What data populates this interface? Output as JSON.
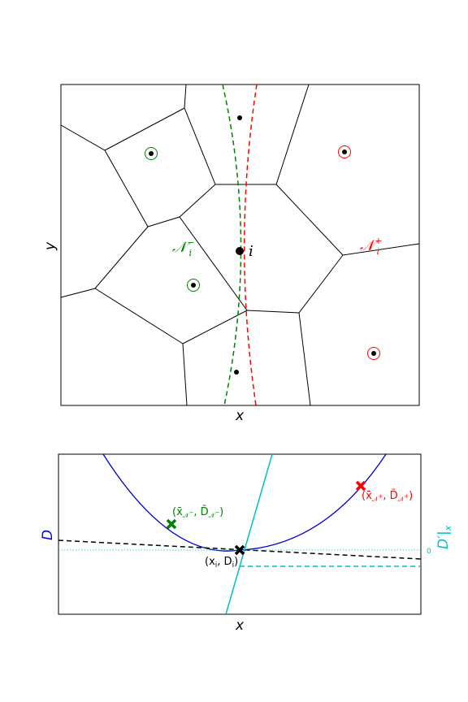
{
  "top_panel": {
    "xlabel": "x",
    "ylabel": "y",
    "cell_label": "i",
    "neighbors_minus_label": "𝒩",
    "neighbors_minus_sub": "i",
    "neighbors_minus_sup": "−",
    "neighbors_plus_label": "𝒩",
    "neighbors_plus_sub": "i",
    "neighbors_plus_sup": "+",
    "colors": {
      "minus": "#008000",
      "plus": "#ff0000",
      "edges": "#000000"
    }
  },
  "bottom_panel": {
    "xlabel": "x",
    "ylabel_left": "D",
    "ylabel_right": "D′|",
    "ylabel_right_sub": "x",
    "zero_tick": "0",
    "point_center_label": "(x",
    "point_center_label_sub": "i",
    "point_center_label_mid": ", D",
    "point_center_label_end": ")",
    "point_minus_label": "(x̄",
    "point_minus_label_end": ", D̄",
    "point_plus_label": "(x̄",
    "point_plus_label_end": ", D̄",
    "colors": {
      "curve": "#0000cd",
      "derivative": "#00bfbf",
      "minus": "#008000",
      "plus": "#ff0000",
      "tangent": "#000000"
    }
  }
}
